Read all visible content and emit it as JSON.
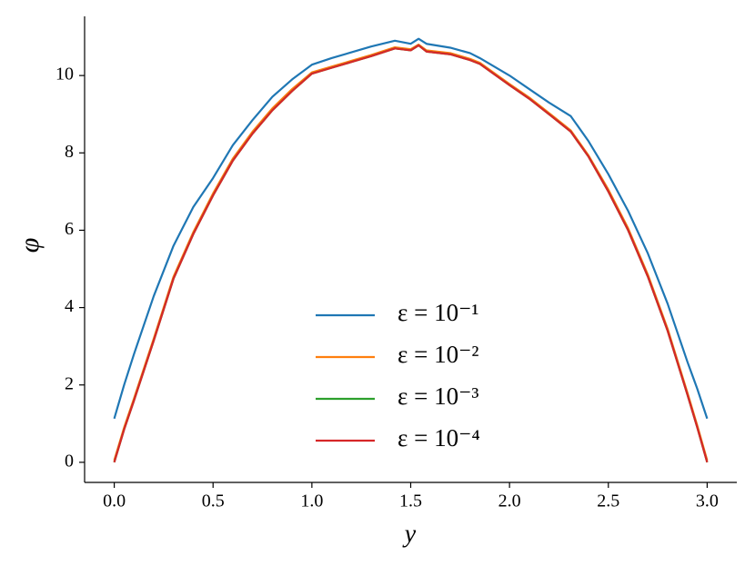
{
  "chart_data": {
    "type": "line",
    "xlabel": "y",
    "ylabel": "φ",
    "x": [
      0,
      0.05,
      0.1,
      0.2,
      0.3,
      0.4,
      0.5,
      0.6,
      0.7,
      0.8,
      0.9,
      1.0,
      1.1,
      1.2,
      1.3,
      1.42,
      1.5,
      1.54,
      1.58,
      1.7,
      1.8,
      1.85,
      2.0,
      2.1,
      2.2,
      2.31,
      2.4,
      2.5,
      2.6,
      2.7,
      2.8,
      2.9,
      2.95,
      3.0
    ],
    "series": [
      {
        "name": "ε = 10⁻¹",
        "color": "#1f77b4",
        "values": [
          1.13,
          2.0,
          2.8,
          4.3,
          5.6,
          6.6,
          7.35,
          8.2,
          8.85,
          9.45,
          9.9,
          10.28,
          10.45,
          10.6,
          10.75,
          10.9,
          10.82,
          10.95,
          10.82,
          10.72,
          10.58,
          10.45,
          10.0,
          9.65,
          9.3,
          8.95,
          8.3,
          7.45,
          6.5,
          5.4,
          4.1,
          2.6,
          1.9,
          1.13
        ]
      },
      {
        "name": "ε = 10⁻²",
        "color": "#ff7f0e",
        "values": [
          0.05,
          0.9,
          1.65,
          3.2,
          4.8,
          5.95,
          6.95,
          7.85,
          8.55,
          9.15,
          9.65,
          10.08,
          10.23,
          10.38,
          10.53,
          10.73,
          10.68,
          10.8,
          10.65,
          10.58,
          10.43,
          10.33,
          9.78,
          9.43,
          9.03,
          8.58,
          7.93,
          7.05,
          6.05,
          4.85,
          3.45,
          1.8,
          0.95,
          0.05
        ]
      },
      {
        "name": "ε = 10⁻³",
        "color": "#2ca02c",
        "values": [
          0,
          0.85,
          1.6,
          3.15,
          4.75,
          5.9,
          6.9,
          7.8,
          8.5,
          9.1,
          9.6,
          10.05,
          10.2,
          10.35,
          10.5,
          10.7,
          10.65,
          10.78,
          10.62,
          10.55,
          10.4,
          10.3,
          9.75,
          9.4,
          9.0,
          8.55,
          7.9,
          7.0,
          6.0,
          4.8,
          3.4,
          1.75,
          0.9,
          0
        ]
      },
      {
        "name": "ε = 10⁻⁴",
        "color": "#d62728",
        "values": [
          0,
          0.85,
          1.6,
          3.15,
          4.75,
          5.9,
          6.9,
          7.8,
          8.5,
          9.1,
          9.6,
          10.05,
          10.2,
          10.35,
          10.5,
          10.7,
          10.65,
          10.78,
          10.62,
          10.55,
          10.4,
          10.3,
          9.75,
          9.4,
          9.0,
          8.55,
          7.9,
          7.0,
          6.0,
          4.8,
          3.4,
          1.75,
          0.9,
          0
        ]
      }
    ],
    "xlim": [
      -0.15,
      3.15
    ],
    "ylim": [
      -0.52,
      11.53
    ],
    "xticks": [
      {
        "value": 0,
        "label": "0.0"
      },
      {
        "value": 0.5,
        "label": "0.5"
      },
      {
        "value": 1,
        "label": "1.0"
      },
      {
        "value": 1.5,
        "label": "1.5"
      },
      {
        "value": 2,
        "label": "2.0"
      },
      {
        "value": 2.5,
        "label": "2.5"
      },
      {
        "value": 3,
        "label": "3.0"
      }
    ],
    "yticks": [
      0,
      2,
      4,
      6,
      8,
      10
    ],
    "grid": false,
    "legend": "lower center"
  }
}
